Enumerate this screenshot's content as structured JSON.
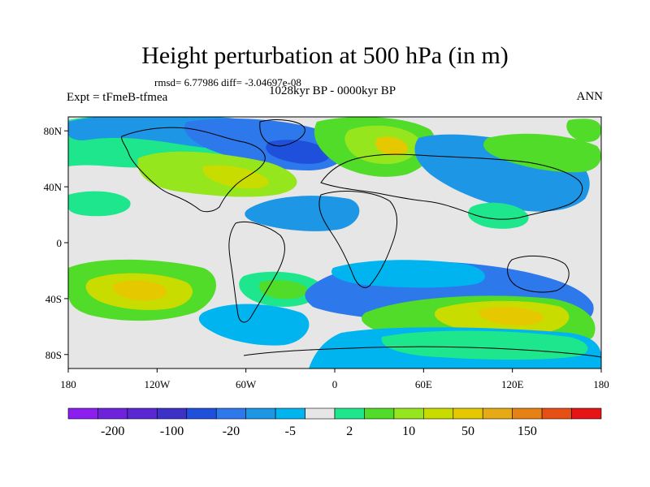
{
  "header": {
    "title": "Height perturbation at 500 hPa (in m)",
    "stats": "rmsd= 6.77986 diff= -3.04697e-08",
    "experiment": "Expt = tFmeB-tfmea",
    "period": "1028kyr BP - 0000kyr BP",
    "season": "ANN"
  },
  "axes": {
    "y_ticks": [
      {
        "label": "80N",
        "lat": 80
      },
      {
        "label": "40N",
        "lat": 40
      },
      {
        "label": "0",
        "lat": 0
      },
      {
        "label": "40S",
        "lat": -40
      },
      {
        "label": "80S",
        "lat": -80
      }
    ],
    "x_ticks": [
      {
        "label": "180",
        "lon": -180
      },
      {
        "label": "120W",
        "lon": -120
      },
      {
        "label": "60W",
        "lon": -60
      },
      {
        "label": "0",
        "lon": 0
      },
      {
        "label": "60E",
        "lon": 60
      },
      {
        "label": "120E",
        "lon": 120
      },
      {
        "label": "180",
        "lon": 180
      }
    ],
    "lon_range": [
      -180,
      180
    ],
    "lat_range": [
      -90,
      90
    ]
  },
  "colorbar": {
    "colors": [
      "#8c1ef0",
      "#6e22dc",
      "#5a28d2",
      "#3c32c8",
      "#1e50dc",
      "#2d78eb",
      "#1e96e6",
      "#00b4f0",
      "#e6e6e6",
      "#1ee68c",
      "#50dc28",
      "#96e61e",
      "#c8dc00",
      "#e6c800",
      "#e6aa14",
      "#e68214",
      "#e65014",
      "#e61414"
    ],
    "labels": [
      "-200",
      "-100",
      "-20",
      "-5",
      "2",
      "10",
      "50",
      "150"
    ]
  },
  "field_colors": {
    "neutral": "#e6e6e6",
    "cyan": "#00b4f0",
    "light_blue": "#1e96e6",
    "mid_blue": "#2d78eb",
    "blue": "#1e50dc",
    "teal_green": "#1ee68c",
    "green": "#50dc28",
    "yellow_green": "#96e61e",
    "yellow": "#c8dc00",
    "orange_yellow": "#e6c800",
    "orange": "#e6aa14",
    "red_orange": "#e65014"
  }
}
